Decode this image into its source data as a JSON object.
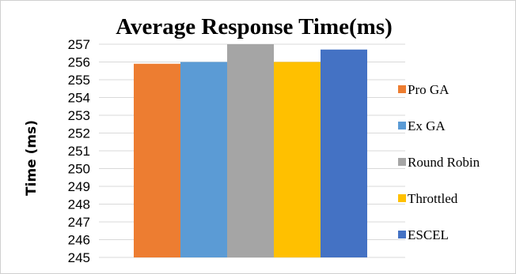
{
  "chart_data": {
    "type": "bar",
    "title": "Average Response Time(ms)",
    "xlabel": "",
    "ylabel": "Time (ms)",
    "ylim": [
      245,
      257
    ],
    "yticks": [
      245,
      246,
      247,
      248,
      249,
      250,
      251,
      252,
      253,
      254,
      255,
      256,
      257
    ],
    "grid": true,
    "legend_position": "right",
    "series": [
      {
        "name": "Pro GA",
        "value": 255.9,
        "color": "#ED7D31"
      },
      {
        "name": "Ex GA",
        "value": 256.0,
        "color": "#5B9BD5"
      },
      {
        "name": "Round Robin",
        "value": 257.0,
        "color": "#A5A5A5"
      },
      {
        "name": "Throttled",
        "value": 256.0,
        "color": "#FFC000"
      },
      {
        "name": "ESCEL",
        "value": 256.7,
        "color": "#4472C4"
      }
    ]
  }
}
